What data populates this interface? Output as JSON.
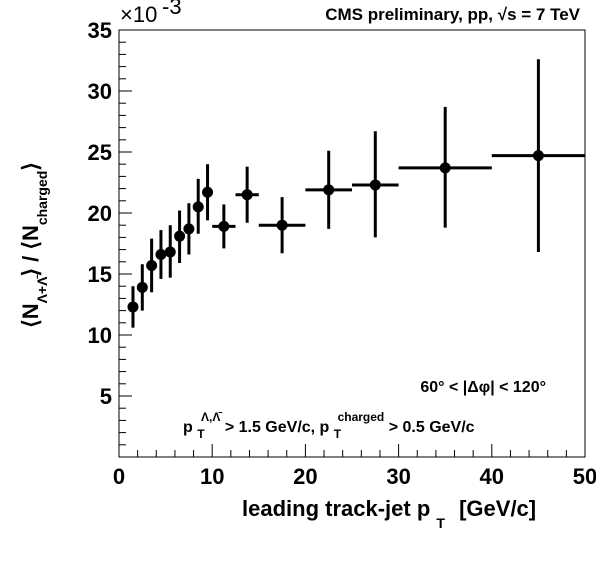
{
  "chart_data": {
    "type": "scatter",
    "title": "CMS preliminary, pp, √s = 7 TeV",
    "xlabel": "leading track-jet p",
    "xlabel_sub": "T",
    "xlabel_unit": "[GeV/c]",
    "ylabel": "⟨N_{Λ+Λ̄}⟩ / ⟨N_{charged}⟩",
    "y_multiplier": "×10",
    "y_multiplier_exp": "-3",
    "xlim": [
      0,
      50
    ],
    "ylim": [
      0,
      35
    ],
    "xticks": [
      "0",
      "10",
      "20",
      "30",
      "40",
      "50"
    ],
    "yticks": [
      "5",
      "10",
      "15",
      "20",
      "25",
      "30",
      "35"
    ],
    "annotations": {
      "line1": "60° < |Δφ| < 120°",
      "line2_a": "p",
      "line2_sub_a": "T",
      "line2_sup_a": "Λ,Λ̄",
      "line2_b": " > 1.5 GeV/c, p",
      "line2_sub_b": "T",
      "line2_sup_b": "charged",
      "line2_c": " > 0.5 GeV/c"
    },
    "grid": false,
    "points": [
      {
        "x": 1.5,
        "y": 12.3,
        "ylo": 10.6,
        "yhi": 14.0,
        "xerr": 0
      },
      {
        "x": 2.5,
        "y": 13.9,
        "ylo": 12.0,
        "yhi": 15.8,
        "xerr": 0
      },
      {
        "x": 3.5,
        "y": 15.7,
        "ylo": 13.5,
        "yhi": 17.9,
        "xerr": 0
      },
      {
        "x": 4.5,
        "y": 16.6,
        "ylo": 14.6,
        "yhi": 18.6,
        "xerr": 0
      },
      {
        "x": 5.5,
        "y": 16.8,
        "ylo": 14.7,
        "yhi": 19.0,
        "xerr": 0
      },
      {
        "x": 6.5,
        "y": 18.1,
        "ylo": 15.9,
        "yhi": 20.2,
        "xerr": 0
      },
      {
        "x": 7.5,
        "y": 18.7,
        "ylo": 16.6,
        "yhi": 20.8,
        "xerr": 0
      },
      {
        "x": 8.5,
        "y": 20.5,
        "ylo": 18.3,
        "yhi": 22.8,
        "xerr": 0
      },
      {
        "x": 9.5,
        "y": 21.7,
        "ylo": 19.4,
        "yhi": 24.0,
        "xerr": 0
      },
      {
        "x": 11.25,
        "y": 18.9,
        "ylo": 17.1,
        "yhi": 20.7,
        "xerr": 1.25
      },
      {
        "x": 13.75,
        "y": 21.5,
        "ylo": 19.2,
        "yhi": 23.8,
        "xerr": 1.25
      },
      {
        "x": 17.5,
        "y": 19.0,
        "ylo": 16.7,
        "yhi": 21.3,
        "xerr": 2.5
      },
      {
        "x": 22.5,
        "y": 21.9,
        "ylo": 18.7,
        "yhi": 25.1,
        "xerr": 2.5
      },
      {
        "x": 27.5,
        "y": 22.3,
        "ylo": 18.0,
        "yhi": 26.7,
        "xerr": 2.5
      },
      {
        "x": 35.0,
        "y": 23.7,
        "ylo": 18.8,
        "yhi": 28.7,
        "xerr": 5.0
      },
      {
        "x": 45.0,
        "y": 24.7,
        "ylo": 16.8,
        "yhi": 32.6,
        "xerr": 5.0
      }
    ]
  }
}
